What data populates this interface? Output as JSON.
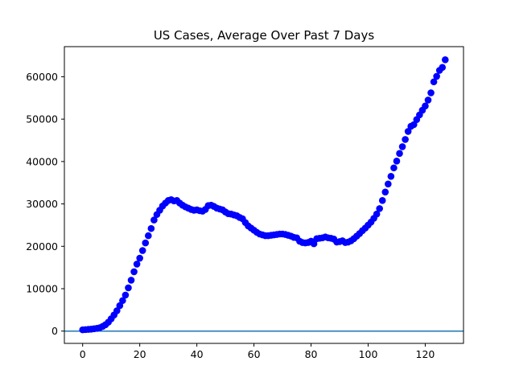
{
  "chart_data": {
    "type": "scatter",
    "title": "US Cases, Average Over Past 7 Days",
    "xlabel": "",
    "ylabel": "",
    "xlim": [
      -6.4,
      133.4
    ],
    "ylim": [
      -2900,
      67100
    ],
    "xticks": [
      0,
      20,
      40,
      60,
      80,
      100,
      120
    ],
    "yticks": [
      0,
      10000,
      20000,
      30000,
      40000,
      50000,
      60000
    ],
    "grid": false,
    "legend": "none",
    "marker_color": "#0000ff",
    "baseline": {
      "y": 0,
      "color": "#1f77b4"
    },
    "series": [
      {
        "x": [
          0,
          1,
          2,
          3,
          4,
          5,
          6,
          7,
          8,
          9,
          10,
          11,
          12,
          13,
          14,
          15,
          16,
          17,
          18,
          19,
          20,
          21,
          22,
          23,
          24,
          25,
          26,
          27,
          28,
          29,
          30,
          31,
          32,
          33,
          34,
          35,
          36,
          37,
          38,
          39,
          40,
          41,
          42,
          43,
          44,
          45,
          46,
          47,
          48,
          49,
          50,
          51,
          52,
          53,
          54,
          55,
          56,
          57,
          58,
          59,
          60,
          61,
          62,
          63,
          64,
          65,
          66,
          67,
          68,
          69,
          70,
          71,
          72,
          73,
          74,
          75,
          76,
          77,
          78,
          79,
          80,
          81,
          82,
          83,
          84,
          85,
          86,
          87,
          88,
          89,
          90,
          91,
          92,
          93,
          94,
          95,
          96,
          97,
          98,
          99,
          100,
          101,
          102,
          103,
          104,
          105,
          106,
          107,
          108,
          109,
          110,
          111,
          112,
          113,
          114,
          115,
          116,
          117,
          118,
          119,
          120,
          121,
          122,
          123,
          124,
          125,
          126,
          127
        ],
        "y": [
          300,
          350,
          400,
          450,
          550,
          650,
          800,
          1100,
          1500,
          2100,
          2900,
          3800,
          4800,
          6000,
          7200,
          8500,
          10200,
          12000,
          14000,
          15800,
          17200,
          19000,
          20800,
          22500,
          24200,
          26200,
          27500,
          28500,
          29500,
          30200,
          30800,
          31000,
          30700,
          30800,
          30200,
          29700,
          29300,
          29000,
          28700,
          28500,
          28600,
          28400,
          28300,
          28700,
          29600,
          29700,
          29400,
          29000,
          28800,
          28600,
          28100,
          27700,
          27600,
          27400,
          27200,
          26800,
          26500,
          25600,
          24800,
          24300,
          23800,
          23300,
          22900,
          22700,
          22500,
          22500,
          22600,
          22700,
          22800,
          22900,
          22900,
          22800,
          22600,
          22400,
          22100,
          22000,
          21200,
          20900,
          20800,
          20900,
          21200,
          20600,
          21800,
          21900,
          22000,
          22200,
          22000,
          21900,
          21700,
          21000,
          21100,
          21300,
          20900,
          21000,
          21300,
          21800,
          22400,
          23000,
          23700,
          24300,
          25000,
          25700,
          26600,
          27600,
          28900,
          30800,
          32800,
          34700,
          36500,
          38500,
          40100,
          41900,
          43500,
          45200,
          47100,
          48300,
          48700,
          49900,
          51000,
          52100,
          53100,
          54500,
          56200,
          58800,
          60100,
          61500,
          62200,
          64000
        ]
      }
    ]
  }
}
